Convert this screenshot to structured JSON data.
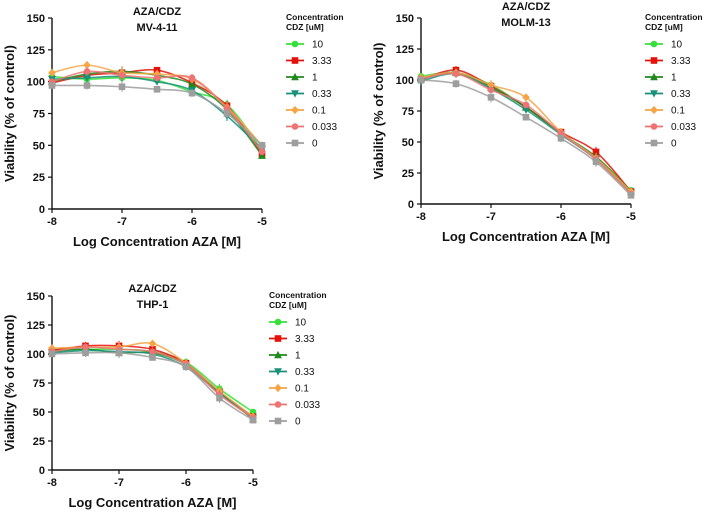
{
  "colors": {
    "10": "#35e03a",
    "3.33": "#e3120b",
    "1": "#1f8a1c",
    "0.33": "#19907a",
    "0.1": "#f5a545",
    "0.033": "#ee7474",
    "0": "#9e9e9e"
  },
  "chart_data": [
    {
      "type": "line",
      "title": "AZA/CDZ",
      "subtitle": "MV-4-11",
      "xlabel": "Log Concentration AZA [M]",
      "ylabel": "Viability (% of control)",
      "xlim": [
        -8,
        -5
      ],
      "ylim": [
        0,
        150
      ],
      "xticks": [
        -8,
        -7,
        -6,
        -5
      ],
      "yticks": [
        0,
        25,
        50,
        75,
        100,
        125,
        150
      ],
      "legend_title": [
        "Concentration",
        "CDZ [uM]"
      ],
      "x": [
        -8,
        -7.5,
        -7,
        -6.5,
        -6,
        -5.5,
        -5
      ],
      "series": [
        {
          "name": "10",
          "values": [
            104,
            102,
            103,
            101,
            92,
            82,
            46
          ]
        },
        {
          "name": "3.33",
          "values": [
            99,
            105,
            107,
            109,
            99,
            81,
            43
          ]
        },
        {
          "name": "1",
          "values": [
            100,
            106,
            108,
            105,
            98,
            78,
            42
          ]
        },
        {
          "name": "0.33",
          "values": [
            102,
            103,
            104,
            100,
            93,
            73,
            47
          ]
        },
        {
          "name": "0.1",
          "values": [
            107,
            113,
            107,
            106,
            102,
            80,
            50
          ]
        },
        {
          "name": "0.033",
          "values": [
            100,
            108,
            105,
            103,
            103,
            79,
            45
          ]
        },
        {
          "name": "0",
          "values": [
            97,
            97,
            96,
            94,
            91,
            75,
            50
          ]
        }
      ]
    },
    {
      "type": "line",
      "title": "AZA/CDZ",
      "subtitle": "MOLM-13",
      "xlabel": "Log Concentration AZA [M]",
      "ylabel": "Viability (% of control)",
      "xlim": [
        -8,
        -5
      ],
      "ylim": [
        0,
        150
      ],
      "xticks": [
        -8,
        -7,
        -6,
        -5
      ],
      "yticks": [
        0,
        25,
        50,
        75,
        100,
        125,
        150
      ],
      "legend_title": [
        "Concentration",
        "CDZ [uM]"
      ],
      "x": [
        -8,
        -7.5,
        -7,
        -6.5,
        -6,
        -5.5,
        -5
      ],
      "series": [
        {
          "name": "10",
          "values": [
            103,
            106,
            96,
            78,
            57,
            38,
            11
          ]
        },
        {
          "name": "3.33",
          "values": [
            100,
            108,
            95,
            78,
            58,
            42,
            10
          ]
        },
        {
          "name": "1",
          "values": [
            101,
            106,
            94,
            78,
            57,
            38,
            10
          ]
        },
        {
          "name": "0.33",
          "values": [
            99,
            105,
            93,
            76,
            56,
            36,
            9
          ]
        },
        {
          "name": "0.1",
          "values": [
            102,
            106,
            96,
            86,
            58,
            37,
            10
          ]
        },
        {
          "name": "0.033",
          "values": [
            101,
            105,
            92,
            80,
            57,
            36,
            8
          ]
        },
        {
          "name": "0",
          "values": [
            100,
            97,
            86,
            70,
            53,
            34,
            7
          ]
        }
      ]
    },
    {
      "type": "line",
      "title": "AZA/CDZ",
      "subtitle": "THP-1",
      "xlabel": "Log Concentration AZA [M]",
      "ylabel": "Viability (% of control)",
      "xlim": [
        -8,
        -5
      ],
      "ylim": [
        0,
        150
      ],
      "xticks": [
        -8,
        -7,
        -6,
        -5
      ],
      "yticks": [
        0,
        25,
        50,
        75,
        100,
        125,
        150
      ],
      "legend_title": [
        "Concentration",
        "CDZ [uM]"
      ],
      "x": [
        -8,
        -7.5,
        -7,
        -6.5,
        -6,
        -5.5,
        -5
      ],
      "series": [
        {
          "name": "10",
          "values": [
            104,
            104,
            104,
            102,
            93,
            70,
            50
          ]
        },
        {
          "name": "3.33",
          "values": [
            103,
            107,
            107,
            104,
            92,
            67,
            46
          ]
        },
        {
          "name": "1",
          "values": [
            102,
            104,
            101,
            101,
            91,
            67,
            44
          ]
        },
        {
          "name": "0.33",
          "values": [
            101,
            103,
            102,
            100,
            89,
            66,
            45
          ]
        },
        {
          "name": "0.1",
          "values": [
            105,
            106,
            106,
            109,
            92,
            68,
            46
          ]
        },
        {
          "name": "0.033",
          "values": [
            102,
            106,
            104,
            102,
            91,
            65,
            45
          ]
        },
        {
          "name": "0",
          "values": [
            100,
            101,
            101,
            97,
            89,
            62,
            43
          ]
        }
      ]
    }
  ]
}
